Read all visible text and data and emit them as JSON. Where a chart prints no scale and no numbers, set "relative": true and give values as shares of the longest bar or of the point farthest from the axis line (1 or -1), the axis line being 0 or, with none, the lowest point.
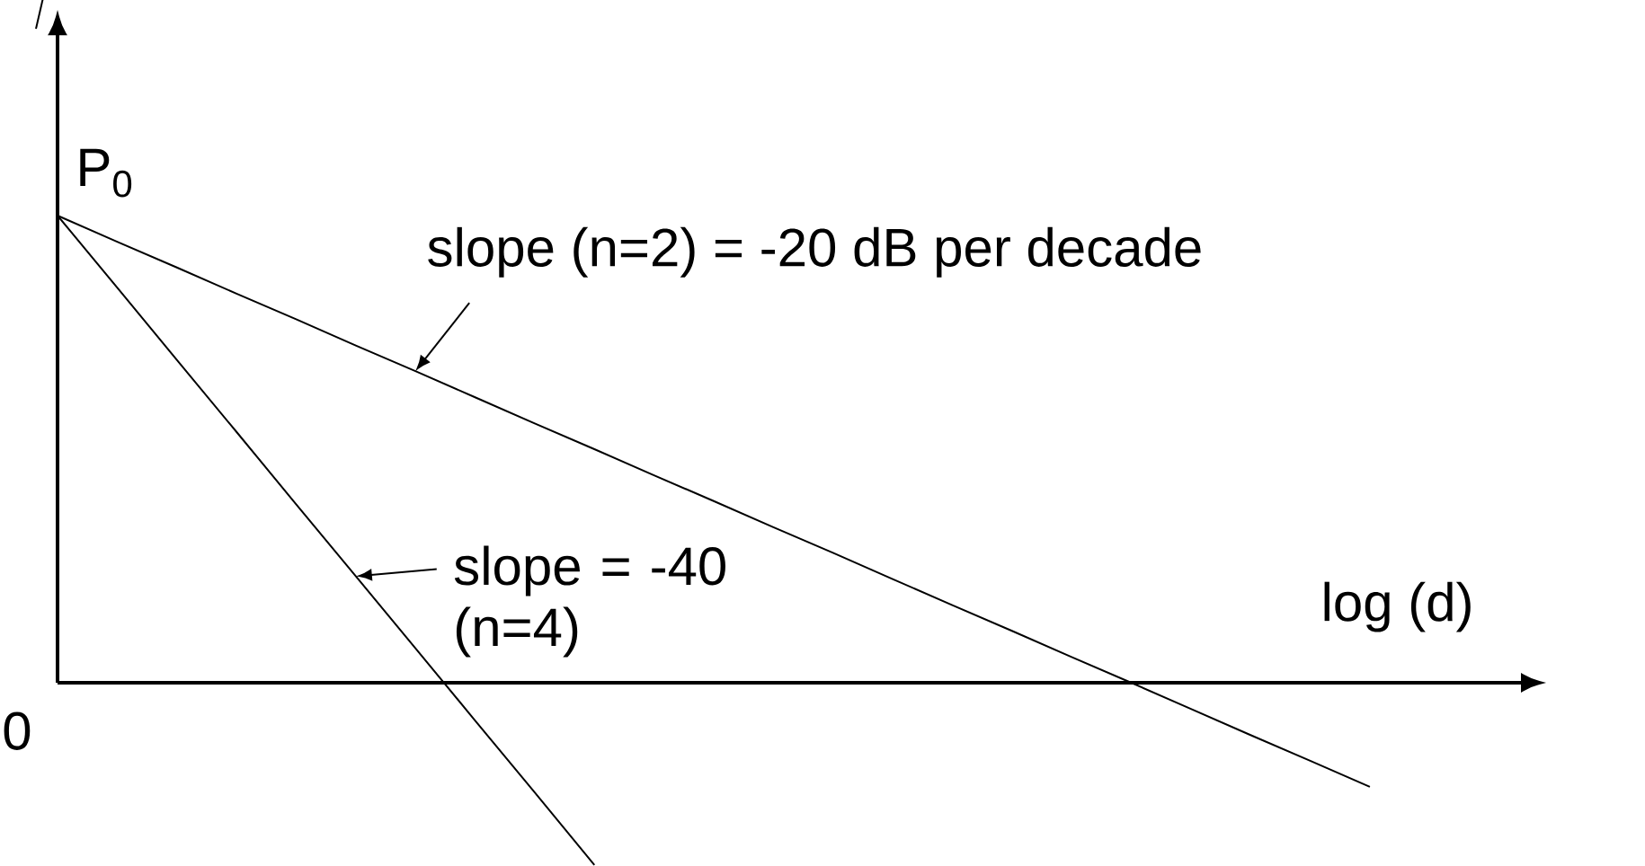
{
  "chart_data": {
    "type": "line",
    "relative": true,
    "ylabel": "P$_{0}$",
    "xlabel": "log (d)",
    "marker": "none",
    "line_style": "solid",
    "categories": [
      null,
      null,
      null,
      null,
      null,
      null,
      null,
      null,
      null,
      null,
      null,
      null,
      null,
      null,
      null,
      null,
      null,
      null,
      null,
      null,
      null,
      null,
      null,
      null
    ],
    "series": [
      {
        "color": "#000000",
        "values": [
          1,
          0.944,
          0.889,
          0.833,
          0.778,
          0.722,
          0.667,
          0.611,
          0.555,
          0.5,
          0.444,
          0.389,
          0.333,
          0.278,
          0.222,
          0.166,
          0.111,
          0.055,
          0,
          -0.056,
          -0.112,
          -0.167,
          -0.223,
          null
        ]
      },
      {
        "color": "#000000",
        "values": [
          1,
          0.846,
          0.691,
          0.537,
          0.382,
          0.228,
          0.074,
          -0.081,
          -0.235,
          -0.39,
          null,
          null,
          null,
          null,
          null,
          null,
          null,
          null,
          null,
          null,
          null,
          null,
          null,
          null
        ]
      }
    ],
    "annotations": [
      "slope (n=2) = -20 dB per decade",
      "slope = -40 (n=4)",
      "0"
    ]
  }
}
